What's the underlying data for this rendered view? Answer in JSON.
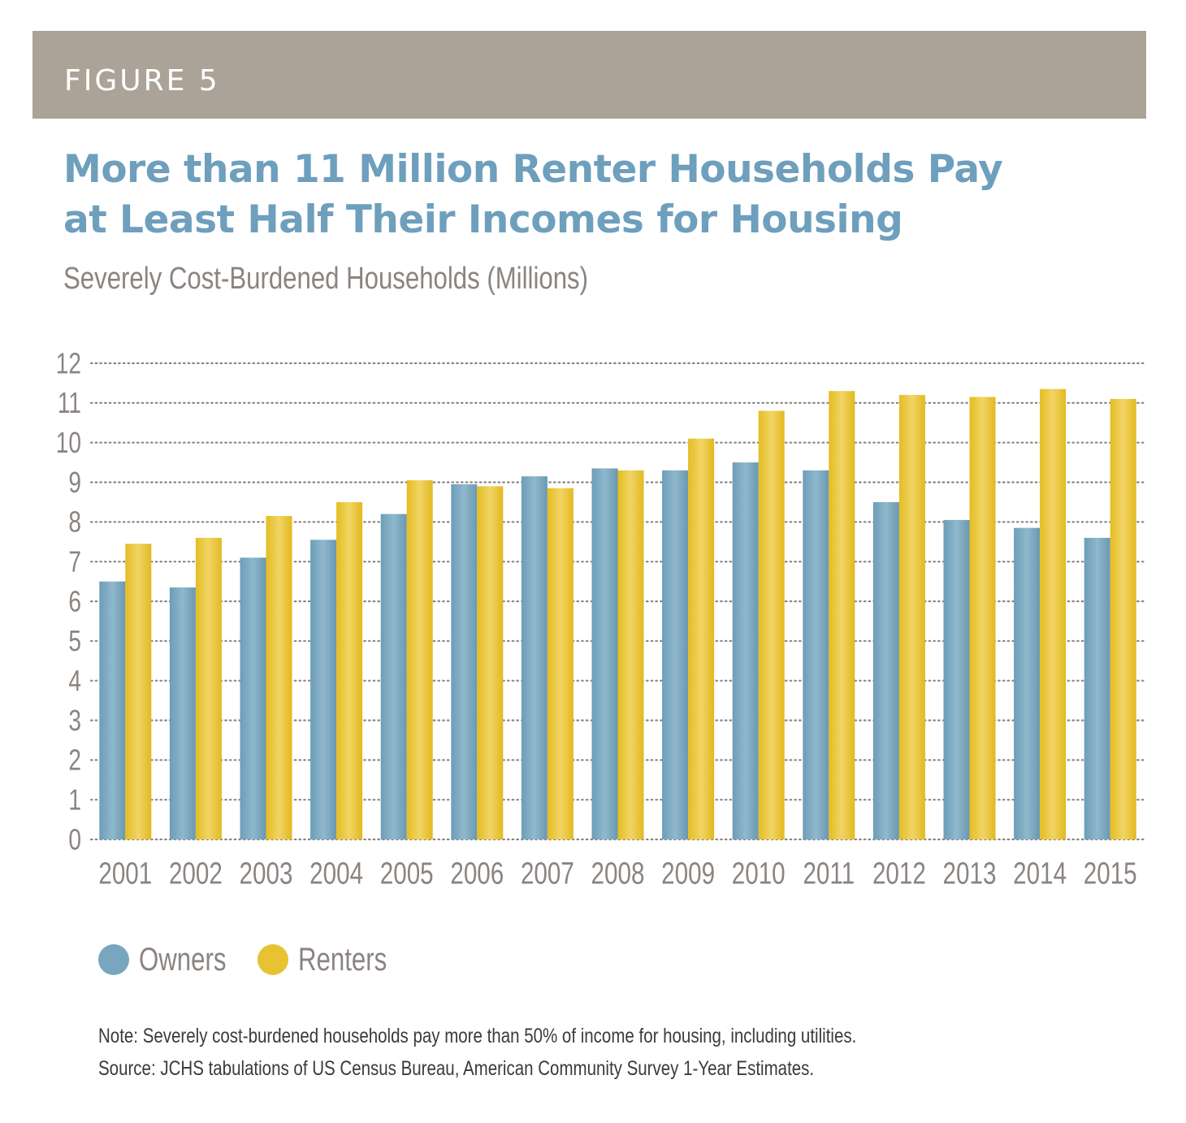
{
  "figure_label": "FIGURE 5",
  "title_lines": [
    "More than 11 Million Renter Households Pay",
    "at Least Half Their Incomes for Housing"
  ],
  "subtitle": "Severely Cost-Burdened Households (Millions)",
  "colors": {
    "band": "#aca398",
    "title": "#6e9fbd",
    "owners": "#78a6bf",
    "renters": "#e8c233",
    "axis_text": "#8b8480"
  },
  "legend": {
    "owners": "Owners",
    "renters": "Renters"
  },
  "notes": {
    "note": "Note: Severely cost-burdened households pay more than 50% of income for housing, including utilities.",
    "source": "Source: JCHS tabulations of US Census Bureau, American Community Survey 1-Year Estimates."
  },
  "chart_data": {
    "type": "bar",
    "title": "More than 11 Million Renter Households Pay at Least Half Their Incomes for Housing",
    "ylabel": "Severely Cost-Burdened Households (Millions)",
    "xlabel": "",
    "ylim": [
      0,
      12
    ],
    "yticks": [
      "0",
      "1",
      "2",
      "3",
      "4",
      "5",
      "6",
      "7",
      "8",
      "9",
      "10",
      "11",
      "12"
    ],
    "grid": true,
    "legend_position": "bottom-left",
    "categories": [
      "2001",
      "2002",
      "2003",
      "2004",
      "2005",
      "2006",
      "2007",
      "2008",
      "2009",
      "2010",
      "2011",
      "2012",
      "2013",
      "2014",
      "2015"
    ],
    "series": [
      {
        "name": "Owners",
        "values": [
          6.5,
          6.35,
          7.1,
          7.55,
          8.2,
          8.95,
          9.15,
          9.35,
          9.3,
          9.5,
          9.3,
          8.5,
          8.05,
          7.85,
          7.6
        ]
      },
      {
        "name": "Renters",
        "values": [
          7.45,
          7.6,
          8.15,
          8.5,
          9.05,
          8.9,
          8.85,
          9.3,
          10.1,
          10.8,
          11.3,
          11.2,
          11.15,
          11.35,
          11.1
        ]
      }
    ]
  }
}
